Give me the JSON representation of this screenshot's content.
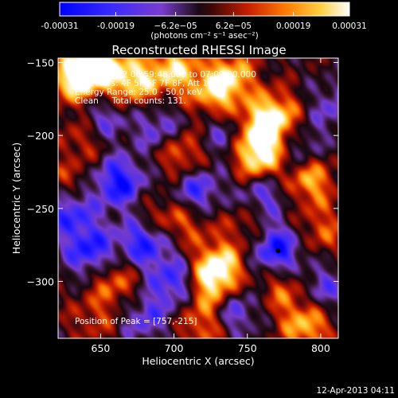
{
  "chart_data": {
    "type": "heatmap",
    "title": "Reconstructed RHESSI Image",
    "xlabel": "Heliocentric X (arcsec)",
    "ylabel": "Heliocentric Y (arcsec)",
    "xlim": [
      621,
      812
    ],
    "ylim": [
      -339,
      -147
    ],
    "xticks": [
      650,
      700,
      750,
      800
    ],
    "yticks": [
      -300,
      -250,
      -200,
      -150
    ],
    "colorbar": {
      "label": "(photons cm⁻² s⁻¹ asec⁻²)",
      "range": [
        -0.00031,
        0.00031
      ],
      "ticks": [
        "-0.00031",
        "-0.00019",
        "−6.2e−05",
        "6.2e−05",
        "0.00019",
        "0.00031"
      ],
      "tick_values": [
        -0.00031,
        -0.00019,
        -6.2e-05,
        6.2e-05,
        0.00019,
        0.00031
      ]
    },
    "annotations": [
      "26-Feb-2002 06:59:48.000 to 07:00:00.000",
      "Detectors: 4F 5F 6F 7F 8F, Att 1",
      "Energy Range: 25.0 - 50.0 keV",
      "Clean     Total counts: 131."
    ],
    "peak_label": "Position of Peak = [757,-215]",
    "peak": [
      757,
      -215
    ],
    "marker": [
      771,
      -279
    ],
    "sources": [
      {
        "x": 632,
        "y": -160,
        "v": 1.0
      },
      {
        "x": 648,
        "y": -152,
        "v": 0.9
      },
      {
        "x": 672,
        "y": -162,
        "v": 0.85
      },
      {
        "x": 700,
        "y": -155,
        "v": 0.8
      },
      {
        "x": 728,
        "y": -170,
        "v": 0.75
      },
      {
        "x": 740,
        "y": -158,
        "v": 0.6
      },
      {
        "x": 757,
        "y": -215,
        "v": 1.0
      },
      {
        "x": 760,
        "y": -195,
        "v": 0.85
      },
      {
        "x": 770,
        "y": -185,
        "v": 0.6
      },
      {
        "x": 792,
        "y": -230,
        "v": 0.75
      },
      {
        "x": 640,
        "y": -200,
        "v": 0.5
      },
      {
        "x": 628,
        "y": -235,
        "v": 0.45
      },
      {
        "x": 705,
        "y": -212,
        "v": 0.6
      },
      {
        "x": 710,
        "y": -258,
        "v": 0.4
      },
      {
        "x": 688,
        "y": -258,
        "v": 0.45
      },
      {
        "x": 730,
        "y": -290,
        "v": 0.95
      },
      {
        "x": 724,
        "y": -305,
        "v": 0.6
      },
      {
        "x": 660,
        "y": -300,
        "v": 0.5
      },
      {
        "x": 720,
        "y": -330,
        "v": 0.55
      },
      {
        "x": 790,
        "y": -330,
        "v": 0.75
      },
      {
        "x": 775,
        "y": -305,
        "v": 0.5
      },
      {
        "x": 800,
        "y": -265,
        "v": 0.45
      },
      {
        "x": 750,
        "y": -260,
        "v": 0.35
      },
      {
        "x": 645,
        "y": -325,
        "v": 0.35
      },
      {
        "x": 662,
        "y": -232,
        "v": -0.9
      },
      {
        "x": 628,
        "y": -250,
        "v": -0.8
      },
      {
        "x": 680,
        "y": -272,
        "v": -0.9
      },
      {
        "x": 715,
        "y": -238,
        "v": -0.7
      },
      {
        "x": 642,
        "y": -278,
        "v": -0.8
      },
      {
        "x": 700,
        "y": -300,
        "v": -0.7
      },
      {
        "x": 770,
        "y": -278,
        "v": -0.9
      },
      {
        "x": 760,
        "y": -240,
        "v": -0.6
      },
      {
        "x": 650,
        "y": -190,
        "v": -0.6
      },
      {
        "x": 690,
        "y": -195,
        "v": -0.5
      },
      {
        "x": 740,
        "y": -320,
        "v": -0.6
      },
      {
        "x": 800,
        "y": -305,
        "v": -0.5
      },
      {
        "x": 785,
        "y": -210,
        "v": -0.45
      },
      {
        "x": 680,
        "y": -325,
        "v": -0.5
      },
      {
        "x": 735,
        "y": -200,
        "v": -0.45
      },
      {
        "x": 808,
        "y": -180,
        "v": -0.4
      }
    ]
  },
  "footer": {
    "timestamp": "12-Apr-2013 04:11"
  }
}
